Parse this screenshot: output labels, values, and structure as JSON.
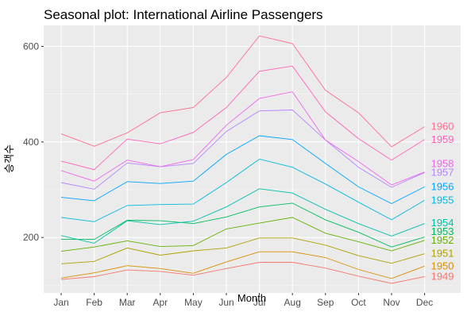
{
  "chart_data": {
    "type": "line",
    "title": "Seasonal plot: International Airline Passengers",
    "xlabel": "Month",
    "ylabel": "승객수",
    "categories": [
      "Jan",
      "Feb",
      "Mar",
      "Apr",
      "May",
      "Jun",
      "Jul",
      "Aug",
      "Sep",
      "Oct",
      "Nov",
      "Dec"
    ],
    "y_ticks": [
      200,
      400,
      600
    ],
    "ylim": [
      84,
      644
    ],
    "grid": true,
    "legend": "none",
    "series": [
      {
        "name": "1949",
        "color": "#F8766D",
        "values": [
          112,
          118,
          132,
          129,
          121,
          135,
          148,
          148,
          136,
          119,
          104,
          118
        ]
      },
      {
        "name": "1950",
        "color": "#DB8E00",
        "values": [
          115,
          126,
          141,
          135,
          125,
          149,
          170,
          170,
          158,
          133,
          114,
          140
        ]
      },
      {
        "name": "1951",
        "color": "#AEA200",
        "values": [
          145,
          150,
          178,
          163,
          172,
          178,
          199,
          199,
          184,
          162,
          146,
          166
        ]
      },
      {
        "name": "1952",
        "color": "#64B200",
        "values": [
          171,
          180,
          193,
          181,
          183,
          218,
          230,
          242,
          209,
          191,
          172,
          194
        ]
      },
      {
        "name": "1953",
        "color": "#00BD5C",
        "values": [
          196,
          196,
          236,
          235,
          229,
          243,
          264,
          272,
          237,
          211,
          180,
          201
        ]
      },
      {
        "name": "1954",
        "color": "#00C1A7",
        "values": [
          204,
          188,
          235,
          227,
          234,
          264,
          302,
          293,
          259,
          229,
          203,
          229
        ]
      },
      {
        "name": "1955",
        "color": "#00BADE",
        "values": [
          242,
          233,
          267,
          269,
          270,
          315,
          364,
          347,
          312,
          274,
          237,
          278
        ]
      },
      {
        "name": "1956",
        "color": "#00A6FF",
        "values": [
          284,
          277,
          317,
          313,
          318,
          374,
          413,
          405,
          355,
          306,
          271,
          306
        ]
      },
      {
        "name": "1957",
        "color": "#B385FF",
        "values": [
          315,
          301,
          356,
          348,
          355,
          422,
          465,
          467,
          404,
          347,
          305,
          336
        ]
      },
      {
        "name": "1958",
        "color": "#EF67EB",
        "values": [
          340,
          318,
          362,
          348,
          363,
          435,
          491,
          505,
          404,
          359,
          310,
          337
        ]
      },
      {
        "name": "1959",
        "color": "#FF63B6",
        "values": [
          360,
          342,
          406,
          396,
          420,
          472,
          548,
          559,
          463,
          407,
          362,
          405
        ]
      },
      {
        "name": "1960",
        "color": "#FF6C90",
        "values": [
          417,
          391,
          419,
          461,
          472,
          535,
          622,
          606,
          508,
          461,
          390,
          432
        ]
      }
    ]
  }
}
